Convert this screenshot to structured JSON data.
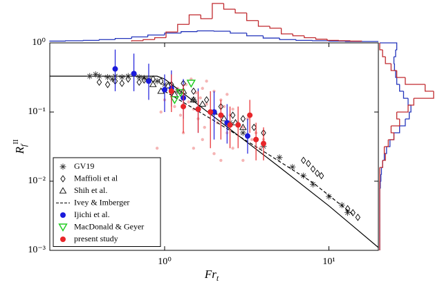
{
  "chart_data": {
    "type": "scatter",
    "xlabel": {
      "base": "Fr",
      "sub": "t"
    },
    "ylabel": {
      "base": "R",
      "sub": "f",
      "sup": "II"
    },
    "xscale": "log",
    "yscale": "log",
    "xlim": [
      0.2,
      20
    ],
    "ylim": [
      0.001,
      1
    ],
    "xticks": [
      {
        "value": 1,
        "label": "10⁰"
      },
      {
        "value": 10,
        "label": "10¹"
      }
    ],
    "yticks": [
      {
        "value": 0.001,
        "label": "10⁻³"
      },
      {
        "value": 0.01,
        "label": "10⁻²"
      },
      {
        "value": 0.1,
        "label": "10⁻¹"
      },
      {
        "value": 1,
        "label": "10⁰"
      }
    ],
    "legend": "lower left",
    "scatter_cloud": {
      "color": "#f5b5b5",
      "x": [
        0.9,
        1.0,
        1.1,
        1.15,
        1.2,
        1.25,
        1.3,
        1.35,
        1.4,
        1.45,
        1.5,
        1.55,
        1.6,
        1.65,
        1.7,
        1.75,
        1.8,
        1.9,
        2.0,
        2.1,
        2.2,
        2.3,
        2.4,
        2.5,
        2.6,
        2.8,
        3.0,
        3.2,
        3.4,
        3.6,
        3.8,
        4.0,
        1.3,
        1.5,
        1.7,
        2.0,
        2.2,
        2.6,
        3.0,
        0.95,
        1.8,
        2.4
      ],
      "y": [
        0.03,
        0.15,
        0.18,
        0.12,
        0.22,
        0.09,
        0.17,
        0.25,
        0.14,
        0.3,
        0.11,
        0.19,
        0.08,
        0.16,
        0.22,
        0.06,
        0.13,
        0.1,
        0.2,
        0.07,
        0.15,
        0.12,
        0.05,
        0.09,
        0.11,
        0.07,
        0.06,
        0.08,
        0.04,
        0.05,
        0.03,
        0.04,
        0.05,
        0.03,
        0.04,
        0.025,
        0.02,
        0.03,
        0.02,
        0.1,
        0.28,
        0.18
      ]
    },
    "fit_line": {
      "color": "#000000",
      "x": [
        0.2,
        0.9,
        1.0,
        2,
        5,
        10,
        20
      ],
      "y": [
        0.33,
        0.33,
        0.3,
        0.085,
        0.016,
        0.0044,
        0.0011
      ]
    },
    "series": [
      {
        "name": "GV19",
        "marker": "asterisk",
        "color": "#333333",
        "x": [
          0.35,
          0.4,
          0.45,
          0.5,
          0.55,
          0.6,
          0.7,
          0.8,
          0.9,
          1.0,
          1.2,
          1.5,
          2,
          2.5,
          3,
          4,
          5,
          6,
          7,
          8,
          10,
          12,
          13,
          0.38,
          0.48,
          0.65,
          0.75
        ],
        "values": [
          0.33,
          0.33,
          0.32,
          0.33,
          0.32,
          0.33,
          0.32,
          0.3,
          0.28,
          0.25,
          0.2,
          0.15,
          0.1,
          0.07,
          0.05,
          0.032,
          0.022,
          0.016,
          0.012,
          0.009,
          0.006,
          0.0045,
          0.0035,
          0.35,
          0.3,
          0.35,
          0.31
        ]
      },
      {
        "name": "Maffioli et al",
        "marker": "diamond",
        "color": "#000000",
        "x": [
          0.4,
          0.45,
          0.5,
          0.55,
          0.6,
          0.7,
          0.75,
          0.85,
          0.95,
          1.1,
          1.3,
          1.5,
          1.8,
          2.2,
          2.6,
          3.0,
          3.5,
          4.0,
          7.0,
          7.5,
          8,
          8.5,
          9,
          13,
          14,
          15
        ],
        "values": [
          0.27,
          0.25,
          0.28,
          0.26,
          0.3,
          0.27,
          0.29,
          0.3,
          0.28,
          0.25,
          0.26,
          0.2,
          0.15,
          0.12,
          0.09,
          0.08,
          0.06,
          0.05,
          0.02,
          0.018,
          0.015,
          0.013,
          0.012,
          0.004,
          0.0035,
          0.003
        ]
      },
      {
        "name": "Shih et al.",
        "marker": "triangle-up",
        "color": "#000000",
        "x": [
          0.85,
          0.95,
          1.05,
          1.15,
          1.3,
          1.5,
          1.7,
          2.0,
          2.3,
          2.7,
          3.0
        ],
        "values": [
          0.25,
          0.2,
          0.24,
          0.18,
          0.2,
          0.15,
          0.13,
          0.1,
          0.08,
          0.07,
          0.06
        ]
      },
      {
        "name": "Ivey & Imberger",
        "marker": "dashed-line",
        "color": "#000000",
        "x": [
          1,
          2,
          4,
          8,
          14
        ],
        "values": [
          0.2,
          0.075,
          0.027,
          0.0095,
          0.0033
        ]
      },
      {
        "name": "Ijichi et al.",
        "marker": "circle",
        "color": "#1a1adb",
        "x": [
          0.5,
          0.65,
          0.8,
          1.0,
          1.1,
          1.3,
          1.6,
          2.0,
          2.4,
          3.2
        ],
        "values": [
          0.42,
          0.36,
          0.28,
          0.21,
          0.22,
          0.16,
          0.11,
          0.1,
          0.07,
          0.045
        ],
        "ylow": [
          0.2,
          0.2,
          0.15,
          0.1,
          0.12,
          0.08,
          0.05,
          0.04,
          0.035,
          0.025
        ],
        "yhigh": [
          0.8,
          0.7,
          0.5,
          0.35,
          0.4,
          0.3,
          0.22,
          0.2,
          0.13,
          0.08
        ]
      },
      {
        "name": "MacDonald & Geyer",
        "marker": "triangle-down",
        "color": "#22cc22",
        "x": [
          1.15,
          1.25,
          1.45
        ],
        "values": [
          0.15,
          0.19,
          0.26
        ]
      },
      {
        "name": "present study",
        "marker": "circle",
        "color": "#e8262a",
        "x": [
          1.1,
          1.3,
          1.6,
          1.9,
          2.2,
          2.5,
          2.8,
          3.3,
          3.6,
          4.0
        ],
        "values": [
          0.2,
          0.12,
          0.11,
          0.1,
          0.09,
          0.065,
          0.065,
          0.09,
          0.04,
          0.035
        ],
        "ylow": [
          0.1,
          0.05,
          0.05,
          0.03,
          0.04,
          0.03,
          0.03,
          0.05,
          0.02,
          0.02
        ],
        "yhigh": [
          0.35,
          0.25,
          0.2,
          0.2,
          0.15,
          0.12,
          0.12,
          0.15,
          0.07,
          0.06
        ]
      }
    ],
    "top_histograms": {
      "lim": [
        0,
        100
      ],
      "series": [
        {
          "color": "#2233bb",
          "bins": [
            0.2,
            0.25,
            0.32,
            0.4,
            0.5,
            0.63,
            0.79,
            1.0,
            1.26,
            1.58,
            2.0,
            2.51,
            3.16,
            3.98,
            5.01,
            6.31,
            7.94,
            10,
            12.6,
            15.8,
            20
          ],
          "counts": [
            1,
            2,
            3,
            5,
            8,
            12,
            17,
            22,
            26,
            28,
            27,
            22,
            15,
            9,
            5,
            3,
            2,
            1,
            0,
            0
          ]
        },
        {
          "color": "#c0282d",
          "bins": [
            0.63,
            0.74,
            0.87,
            1.02,
            1.2,
            1.41,
            1.66,
            1.95,
            2.29,
            2.69,
            3.16,
            3.72,
            4.37,
            5.13,
            6.03,
            7.08,
            8.32,
            9.77,
            11.5,
            13.5,
            15.8
          ],
          "counts": [
            2,
            5,
            10,
            25,
            45,
            70,
            60,
            100,
            85,
            75,
            55,
            40,
            35,
            20,
            15,
            10,
            6,
            3,
            2,
            1
          ]
        }
      ]
    },
    "right_histograms": {
      "lim": [
        0,
        100
      ],
      "series": [
        {
          "color": "#2233bb",
          "bins": [
            0.001,
            0.00126,
            0.00158,
            0.002,
            0.00251,
            0.00316,
            0.00398,
            0.00501,
            0.00631,
            0.00794,
            0.01,
            0.0126,
            0.0158,
            0.02,
            0.0251,
            0.0316,
            0.0398,
            0.0501,
            0.0631,
            0.0794,
            0.1,
            0.126,
            0.158,
            0.2,
            0.251,
            0.316,
            0.398,
            0.501,
            0.631,
            0.794,
            1
          ],
          "counts": [
            0,
            0,
            0,
            0,
            0,
            0,
            0,
            0,
            0,
            1,
            2,
            3,
            5,
            8,
            12,
            18,
            25,
            35,
            45,
            52,
            55,
            50,
            42,
            35,
            30,
            28,
            26,
            25,
            28,
            30
          ]
        },
        {
          "color": "#c0282d",
          "bins": [
            0.001,
            0.00126,
            0.00158,
            0.002,
            0.00251,
            0.00316,
            0.00398,
            0.00501,
            0.00631,
            0.00794,
            0.01,
            0.0126,
            0.0158,
            0.02,
            0.0251,
            0.0316,
            0.0398,
            0.0501,
            0.0631,
            0.0794,
            0.1,
            0.126,
            0.158,
            0.2,
            0.251,
            0.316,
            0.398,
            0.501,
            0.631,
            0.794,
            1
          ],
          "counts": [
            0,
            0,
            0,
            0,
            0,
            0,
            0,
            0,
            0,
            0,
            0,
            0,
            5,
            10,
            8,
            15,
            25,
            20,
            35,
            30,
            50,
            60,
            95,
            80,
            45,
            30,
            20,
            10,
            5,
            0
          ]
        }
      ]
    }
  }
}
